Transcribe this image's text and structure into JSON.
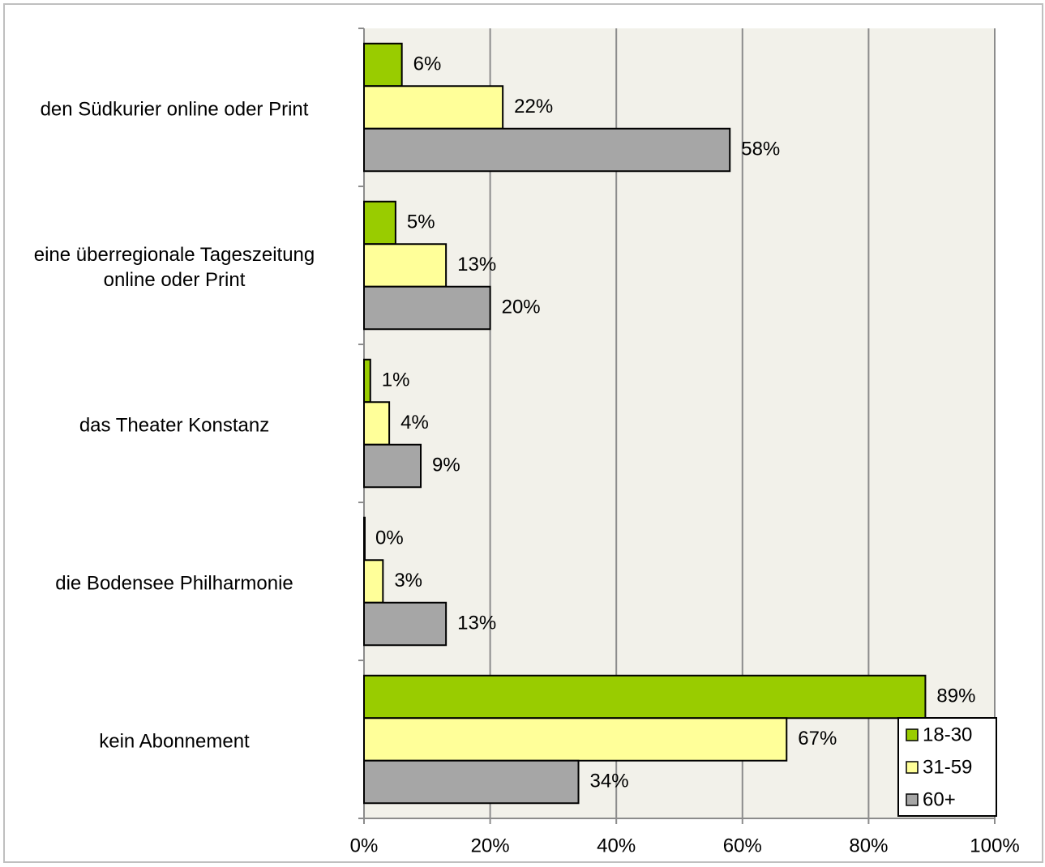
{
  "chart_data": {
    "type": "barh",
    "categories": [
      "den Südkurier online oder Print",
      "eine überregionale Tageszeitung\nonline oder Print",
      "das Theater Konstanz",
      "die Bodensee Philharmonie",
      "kein Abonnement"
    ],
    "series": [
      {
        "name": "18-30",
        "color": "#99cc00",
        "values": [
          6,
          5,
          1,
          0,
          89
        ],
        "value_labels": [
          "6%",
          "5%",
          "1%",
          "0%",
          "89%"
        ]
      },
      {
        "name": "31-59",
        "color": "#ffff99",
        "values": [
          22,
          13,
          4,
          3,
          67
        ],
        "value_labels": [
          "22%",
          "13%",
          "4%",
          "3%",
          "67%"
        ]
      },
      {
        "name": "60+",
        "color": "#a6a6a6",
        "values": [
          58,
          20,
          9,
          13,
          34
        ],
        "value_labels": [
          "58%",
          "20%",
          "9%",
          "13%",
          "34%"
        ]
      }
    ],
    "xlim": [
      0,
      100
    ],
    "xticks": [
      {
        "value": 0,
        "label": "0%"
      },
      {
        "value": 20,
        "label": "20%"
      },
      {
        "value": 40,
        "label": "40%"
      },
      {
        "value": 60,
        "label": "60%"
      },
      {
        "value": 80,
        "label": "80%"
      },
      {
        "value": 100,
        "label": "100%"
      }
    ],
    "grid": true,
    "legend": "lower right"
  }
}
